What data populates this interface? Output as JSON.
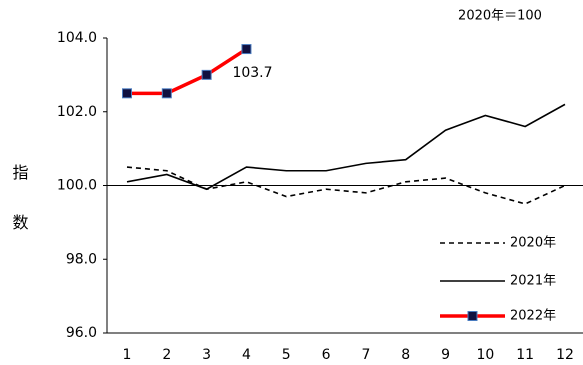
{
  "chart_data": {
    "type": "line",
    "annotation": "2020年＝100",
    "y_label": "指数",
    "categories": [
      "1",
      "2",
      "3",
      "4",
      "5",
      "6",
      "7",
      "8",
      "9",
      "10",
      "11",
      "12"
    ],
    "series": [
      {
        "name": "2020年",
        "color": "#000000",
        "dash": true,
        "marker": false,
        "values": [
          100.5,
          100.4,
          99.9,
          100.1,
          99.7,
          99.9,
          99.8,
          100.1,
          100.2,
          99.8,
          99.5,
          100.0
        ]
      },
      {
        "name": "2021年",
        "color": "#000000",
        "dash": false,
        "marker": false,
        "values": [
          100.1,
          100.3,
          99.9,
          100.5,
          100.4,
          100.4,
          100.6,
          100.7,
          101.5,
          101.9,
          101.6,
          102.2
        ]
      },
      {
        "name": "2022年",
        "color": "#ff0000",
        "dash": false,
        "marker": true,
        "values": [
          102.5,
          102.5,
          103.0,
          103.7,
          null,
          null,
          null,
          null,
          null,
          null,
          null,
          null
        ],
        "value_labels": [
          null,
          null,
          null,
          "103.7",
          null,
          null,
          null,
          null,
          null,
          null,
          null,
          null
        ]
      }
    ],
    "ylim": [
      96,
      104
    ],
    "yticks": [
      {
        "value": 96,
        "label": "96.0"
      },
      {
        "value": 98,
        "label": "98.0"
      },
      {
        "value": 100,
        "label": "100.0"
      },
      {
        "value": 102,
        "label": "102.0"
      },
      {
        "value": 104,
        "label": "104.0"
      }
    ],
    "reference_line": 100,
    "grid": false,
    "legend": "bottom-right"
  }
}
